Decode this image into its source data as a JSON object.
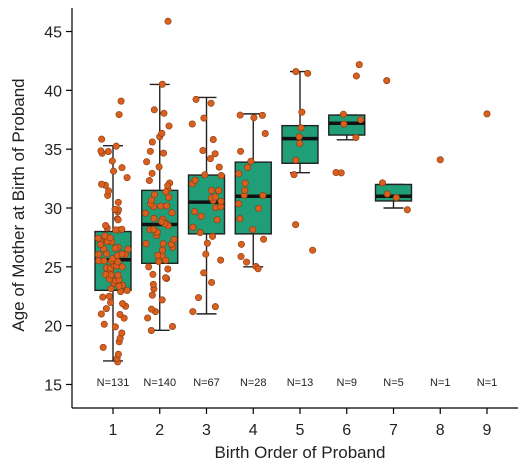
{
  "chart_data": {
    "type": "box",
    "xlabel": "Birth Order of Proband",
    "ylabel": "Age of Mother at Birth of Proband",
    "ylim": [
      13,
      47
    ],
    "yticks": [
      15,
      20,
      25,
      30,
      35,
      40,
      45
    ],
    "categories": [
      "1",
      "2",
      "3",
      "4",
      "5",
      "6",
      "7",
      "8",
      "9"
    ],
    "counts": [
      "N=131",
      "N=140",
      "N=67",
      "N=28",
      "N=13",
      "N=9",
      "N=5",
      "N=1",
      "N=1"
    ],
    "box_color": "#1f9e78",
    "point_color": "#d95f1e",
    "boxes": [
      {
        "group": "1",
        "whisker_low": 17.0,
        "q1": 23.0,
        "median": 25.6,
        "q3": 28.0,
        "whisker_high": 35.3
      },
      {
        "group": "2",
        "whisker_low": 19.6,
        "q1": 25.3,
        "median": 28.6,
        "q3": 31.5,
        "whisker_high": 40.5
      },
      {
        "group": "3",
        "whisker_low": 21.0,
        "q1": 27.8,
        "median": 30.5,
        "q3": 32.8,
        "whisker_high": 39.4
      },
      {
        "group": "4",
        "whisker_low": 25.0,
        "q1": 27.8,
        "median": 31.0,
        "q3": 33.9,
        "whisker_high": 38.0
      },
      {
        "group": "5",
        "whisker_low": 33.0,
        "q1": 33.8,
        "median": 35.9,
        "q3": 37.0,
        "whisker_high": 41.6
      },
      {
        "group": "6",
        "whisker_low": 35.8,
        "q1": 36.2,
        "median": 37.2,
        "q3": 37.9,
        "whisker_high": 37.9
      },
      {
        "group": "7",
        "whisker_low": 30.0,
        "q1": 30.6,
        "median": 31.0,
        "q3": 32.0,
        "whisker_high": 32.0
      }
    ],
    "points": [
      {
        "group": "1",
        "values": [
          17.0,
          17.0,
          17.5,
          18.0,
          18.5,
          19.0,
          19.5,
          20.0,
          20.0,
          20.5,
          21.0,
          21.0,
          21.5,
          21.5,
          22.0,
          22.0,
          22.5,
          22.5,
          23.0,
          23.0,
          23.0,
          23.5,
          23.5,
          23.5,
          24.0,
          24.0,
          24.0,
          24.0,
          24.5,
          24.5,
          24.5,
          24.5,
          25.0,
          25.0,
          25.0,
          25.0,
          25.0,
          25.5,
          25.5,
          25.5,
          25.5,
          25.5,
          26.0,
          26.0,
          26.0,
          26.0,
          26.0,
          26.5,
          26.5,
          26.5,
          26.5,
          27.0,
          27.0,
          27.0,
          27.0,
          27.5,
          27.5,
          27.5,
          28.0,
          28.0,
          28.0,
          28.5,
          28.5,
          29.0,
          29.0,
          29.5,
          30.0,
          30.0,
          30.5,
          31.0,
          31.5,
          32.0,
          32.0,
          32.5,
          33.0,
          33.5,
          34.0,
          34.5,
          35.0,
          35.3,
          35.0,
          36.0,
          39.0,
          38.0
        ]
      },
      {
        "group": "2",
        "values": [
          19.6,
          20.0,
          20.5,
          21.0,
          21.5,
          22.0,
          22.5,
          23.0,
          23.5,
          24.0,
          24.0,
          24.5,
          25.0,
          25.0,
          25.5,
          25.5,
          26.0,
          26.0,
          26.5,
          26.5,
          27.0,
          27.0,
          27.0,
          27.5,
          27.5,
          28.0,
          28.0,
          28.0,
          28.5,
          28.5,
          28.5,
          29.0,
          29.0,
          29.0,
          29.5,
          29.5,
          30.0,
          30.0,
          30.0,
          30.5,
          30.5,
          31.0,
          31.0,
          31.5,
          31.5,
          32.0,
          32.0,
          32.5,
          33.0,
          33.5,
          34.0,
          34.5,
          35.0,
          35.5,
          36.0,
          36.5,
          37.0,
          38.0,
          38.5,
          40.5,
          45.9
        ]
      },
      {
        "group": "3",
        "values": [
          21.0,
          21.5,
          22.5,
          23.5,
          24.5,
          25.5,
          26.0,
          27.0,
          27.5,
          28.0,
          28.5,
          29.0,
          29.5,
          29.5,
          30.0,
          30.0,
          30.5,
          30.5,
          31.0,
          31.0,
          31.5,
          31.5,
          32.0,
          32.5,
          32.8,
          33.0,
          33.5,
          34.0,
          34.5,
          35.0,
          36.0,
          37.0,
          37.5,
          39.0,
          39.4
        ]
      },
      {
        "group": "4",
        "values": [
          25.0,
          25.0,
          25.5,
          26.0,
          27.0,
          27.5,
          28.0,
          29.0,
          30.0,
          30.5,
          31.0,
          31.0,
          31.5,
          32.0,
          33.0,
          33.5,
          34.0,
          35.0,
          36.5,
          37.5,
          38.0,
          38.0
        ]
      },
      {
        "group": "5",
        "values": [
          26.3,
          28.4,
          33.0,
          34.0,
          35.5,
          36.0,
          37.0,
          38.0,
          41.3,
          41.6
        ]
      },
      {
        "group": "6",
        "values": [
          33.0,
          33.0,
          36.0,
          37.0,
          37.5,
          38.0,
          41.2,
          42.0
        ]
      },
      {
        "group": "7",
        "values": [
          30.0,
          30.8,
          31.2,
          32.0,
          41.0
        ]
      },
      {
        "group": "8",
        "values": [
          34.1
        ]
      },
      {
        "group": "9",
        "values": [
          38.0
        ]
      }
    ]
  }
}
